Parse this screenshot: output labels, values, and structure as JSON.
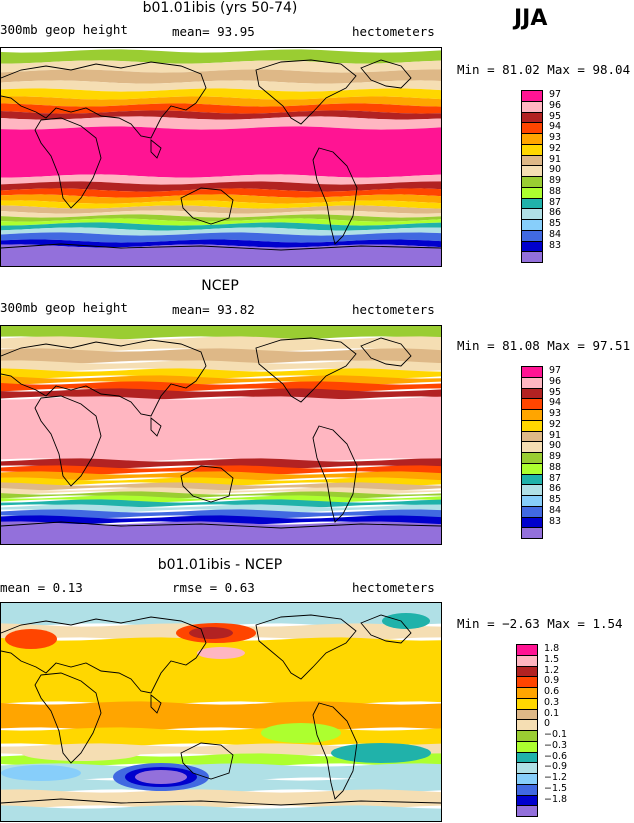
{
  "season": "JJA",
  "chart_data": [
    {
      "type": "heatmap",
      "title": "b01.01ibis (yrs 50-74)",
      "left_label": "300mb geop height",
      "center_label": "mean=  93.95",
      "right_label": "hectometers",
      "minmax_text": "Min =  81.02 Max =  98.04",
      "min": 81.02,
      "max": 98.04,
      "mean": 93.95,
      "colorbar": [
        {
          "label": "97",
          "color": "#ff1493"
        },
        {
          "label": "96",
          "color": "#ffb6c1"
        },
        {
          "label": "95",
          "color": "#b22222"
        },
        {
          "label": "94",
          "color": "#ff4500"
        },
        {
          "label": "93",
          "color": "#ffa500"
        },
        {
          "label": "92",
          "color": "#ffd700"
        },
        {
          "label": "91",
          "color": "#deb887"
        },
        {
          "label": "90",
          "color": "#f5deb3"
        },
        {
          "label": "89",
          "color": "#9acd32"
        },
        {
          "label": "88",
          "color": "#adff2f"
        },
        {
          "label": "87",
          "color": "#20b2aa"
        },
        {
          "label": "86",
          "color": "#b0e0e6"
        },
        {
          "label": "85",
          "color": "#87cefa"
        },
        {
          "label": "84",
          "color": "#4169e1"
        },
        {
          "label": "83",
          "color": "#0000cd"
        },
        {
          "label": "",
          "color": "#9370db"
        }
      ],
      "bands": [
        {
          "y0": 0,
          "y1": 3,
          "color": "#ffffff"
        },
        {
          "y0": 3,
          "y1": 14,
          "color": "#9acd32"
        },
        {
          "y0": 14,
          "y1": 23,
          "color": "#f5deb3"
        },
        {
          "y0": 23,
          "y1": 34,
          "color": "#deb887"
        },
        {
          "y0": 34,
          "y1": 42,
          "color": "#f5deb3"
        },
        {
          "y0": 42,
          "y1": 50,
          "color": "#ffd700"
        },
        {
          "y0": 50,
          "y1": 57,
          "color": "#ffa500"
        },
        {
          "y0": 57,
          "y1": 64,
          "color": "#ff4500"
        },
        {
          "y0": 64,
          "y1": 70,
          "color": "#b22222"
        },
        {
          "y0": 70,
          "y1": 80,
          "color": "#ffb6c1"
        },
        {
          "y0": 80,
          "y1": 128,
          "color": "#ff1493"
        },
        {
          "y0": 128,
          "y1": 135,
          "color": "#ffb6c1"
        },
        {
          "y0": 135,
          "y1": 142,
          "color": "#b22222"
        },
        {
          "y0": 142,
          "y1": 148,
          "color": "#ff4500"
        },
        {
          "y0": 148,
          "y1": 154,
          "color": "#ffa500"
        },
        {
          "y0": 154,
          "y1": 159,
          "color": "#ffd700"
        },
        {
          "y0": 159,
          "y1": 164,
          "color": "#deb887"
        },
        {
          "y0": 164,
          "y1": 168,
          "color": "#f5deb3"
        },
        {
          "y0": 168,
          "y1": 172,
          "color": "#9acd32"
        },
        {
          "y0": 172,
          "y1": 176,
          "color": "#adff2f"
        },
        {
          "y0": 176,
          "y1": 181,
          "color": "#20b2aa"
        },
        {
          "y0": 181,
          "y1": 186,
          "color": "#b0e0e6"
        },
        {
          "y0": 186,
          "y1": 193,
          "color": "#4169e1"
        },
        {
          "y0": 193,
          "y1": 198,
          "color": "#0000cd"
        },
        {
          "y0": 198,
          "y1": 218,
          "color": "#9370db"
        }
      ]
    },
    {
      "type": "heatmap",
      "title": "NCEP",
      "left_label": "300mb geop height",
      "center_label": "mean=  93.82",
      "right_label": "hectometers",
      "minmax_text": "Min =  81.08 Max =  97.51",
      "min": 81.08,
      "max": 97.51,
      "mean": 93.82,
      "colorbar": [
        {
          "label": "97",
          "color": "#ff1493"
        },
        {
          "label": "96",
          "color": "#ffb6c1"
        },
        {
          "label": "95",
          "color": "#b22222"
        },
        {
          "label": "94",
          "color": "#ff4500"
        },
        {
          "label": "93",
          "color": "#ffa500"
        },
        {
          "label": "92",
          "color": "#ffd700"
        },
        {
          "label": "91",
          "color": "#deb887"
        },
        {
          "label": "90",
          "color": "#f5deb3"
        },
        {
          "label": "89",
          "color": "#9acd32"
        },
        {
          "label": "88",
          "color": "#adff2f"
        },
        {
          "label": "87",
          "color": "#20b2aa"
        },
        {
          "label": "86",
          "color": "#b0e0e6"
        },
        {
          "label": "85",
          "color": "#87cefa"
        },
        {
          "label": "84",
          "color": "#4169e1"
        },
        {
          "label": "83",
          "color": "#0000cd"
        },
        {
          "label": "",
          "color": "#9370db"
        }
      ],
      "bands": [
        {
          "y0": 0,
          "y1": 12,
          "color": "#9acd32"
        },
        {
          "y0": 12,
          "y1": 24,
          "color": "#f5deb3"
        },
        {
          "y0": 24,
          "y1": 36,
          "color": "#deb887"
        },
        {
          "y0": 36,
          "y1": 44,
          "color": "#f5deb3"
        },
        {
          "y0": 44,
          "y1": 51,
          "color": "#ffd700"
        },
        {
          "y0": 51,
          "y1": 57,
          "color": "#ffa500"
        },
        {
          "y0": 57,
          "y1": 64,
          "color": "#ff4500"
        },
        {
          "y0": 64,
          "y1": 72,
          "color": "#b22222"
        },
        {
          "y0": 72,
          "y1": 134,
          "color": "#ffb6c1"
        },
        {
          "y0": 134,
          "y1": 141,
          "color": "#b22222"
        },
        {
          "y0": 141,
          "y1": 147,
          "color": "#ff4500"
        },
        {
          "y0": 147,
          "y1": 153,
          "color": "#ffa500"
        },
        {
          "y0": 153,
          "y1": 158,
          "color": "#ffd700"
        },
        {
          "y0": 158,
          "y1": 163,
          "color": "#deb887"
        },
        {
          "y0": 163,
          "y1": 167,
          "color": "#f5deb3"
        },
        {
          "y0": 167,
          "y1": 171,
          "color": "#9acd32"
        },
        {
          "y0": 171,
          "y1": 175,
          "color": "#adff2f"
        },
        {
          "y0": 175,
          "y1": 180,
          "color": "#20b2aa"
        },
        {
          "y0": 180,
          "y1": 185,
          "color": "#b0e0e6"
        },
        {
          "y0": 185,
          "y1": 191,
          "color": "#4169e1"
        },
        {
          "y0": 191,
          "y1": 197,
          "color": "#0000cd"
        },
        {
          "y0": 197,
          "y1": 218,
          "color": "#9370db"
        }
      ]
    },
    {
      "type": "heatmap",
      "title": "b01.01ibis - NCEP",
      "left_label": "mean =   0.13",
      "center_label": "rmse =   0.63",
      "right_label": "hectometers",
      "minmax_text": "Min = −2.63 Max =   1.54",
      "min": -2.63,
      "max": 1.54,
      "mean": 0.13,
      "rmse": 0.63,
      "colorbar": [
        {
          "label": "1.8",
          "color": "#ff1493"
        },
        {
          "label": "1.5",
          "color": "#ffb6c1"
        },
        {
          "label": "1.2",
          "color": "#b22222"
        },
        {
          "label": "0.9",
          "color": "#ff4500"
        },
        {
          "label": "0.6",
          "color": "#ffa500"
        },
        {
          "label": "0.3",
          "color": "#ffd700"
        },
        {
          "label": "0.1",
          "color": "#deb887"
        },
        {
          "label": "0",
          "color": "#f5deb3"
        },
        {
          "label": "−0.1",
          "color": "#9acd32"
        },
        {
          "label": "−0.3",
          "color": "#adff2f"
        },
        {
          "label": "−0.6",
          "color": "#20b2aa"
        },
        {
          "label": "−0.9",
          "color": "#b0e0e6"
        },
        {
          "label": "−1.2",
          "color": "#87cefa"
        },
        {
          "label": "−1.5",
          "color": "#4169e1"
        },
        {
          "label": "−1.8",
          "color": "#0000cd"
        },
        {
          "label": "",
          "color": "#9370db"
        }
      ],
      "bands": [
        {
          "y0": 0,
          "y1": 22,
          "color": "#b0e0e6"
        },
        {
          "y0": 22,
          "y1": 36,
          "color": "#f5deb3"
        },
        {
          "y0": 36,
          "y1": 100,
          "color": "#ffd700"
        },
        {
          "y0": 100,
          "y1": 126,
          "color": "#ffa500"
        },
        {
          "y0": 126,
          "y1": 142,
          "color": "#ffd700"
        },
        {
          "y0": 142,
          "y1": 152,
          "color": "#f5deb3"
        },
        {
          "y0": 152,
          "y1": 162,
          "color": "#adff2f"
        },
        {
          "y0": 162,
          "y1": 176,
          "color": "#b0e0e6"
        },
        {
          "y0": 176,
          "y1": 188,
          "color": "#b0e0e6"
        },
        {
          "y0": 188,
          "y1": 204,
          "color": "#f5deb3"
        },
        {
          "y0": 204,
          "y1": 218,
          "color": "#b0e0e6"
        }
      ]
    }
  ]
}
